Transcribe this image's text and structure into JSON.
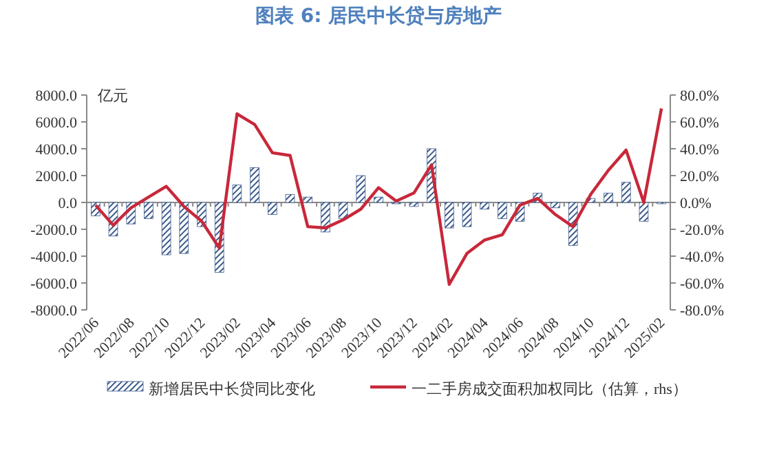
{
  "chart_data": {
    "type": "bar",
    "title": "图表 6:  居民中长贷与房地产",
    "ylabel": "亿元",
    "categories": [
      "2022/06",
      null,
      "2022/08",
      null,
      "2022/10",
      null,
      "2022/12",
      null,
      "2023/02",
      null,
      "2023/04",
      null,
      "2023/06",
      null,
      "2023/08",
      null,
      "2023/10",
      null,
      "2023/12",
      null,
      "2024/02",
      null,
      "2024/04",
      null,
      "2024/06",
      null,
      "2024/08",
      null,
      "2024/10",
      null,
      "2024/12",
      null,
      "2025/02"
    ],
    "series": [
      {
        "name": "新增居民中长贷同比变化",
        "color": "#3b5a8c",
        "values": [
          -1000,
          -2500,
          -1600,
          -1200,
          -3900,
          -3800,
          -1800,
          -5200,
          1300,
          2600,
          -900,
          600,
          400,
          -2200,
          -1200,
          2000,
          400,
          -100,
          -300,
          4000,
          -1900,
          -1800,
          -500,
          -1200,
          -1400,
          700,
          -400,
          -3200,
          300,
          700,
          1500,
          -1400,
          -100
        ]
      },
      {
        "name": "一二手房成交面积加权同比（估算，rhs）",
        "type": "line",
        "axis": "y2",
        "color": "#c8283a",
        "values": [
          -2,
          -17,
          -4,
          4,
          12,
          -3,
          -14,
          -34,
          66,
          58,
          37,
          35,
          -18,
          -19,
          -13,
          -5,
          11,
          1,
          7,
          28,
          -61,
          -38,
          -28,
          -24,
          -2,
          3,
          -9,
          -18,
          6,
          24,
          39,
          0,
          70
        ]
      }
    ],
    "ylim": [
      -8000,
      8000
    ],
    "yticks": [
      {
        "value": -8000,
        "label": "-8000.0"
      },
      {
        "value": -6000,
        "label": "-6000.0"
      },
      {
        "value": -4000,
        "label": "-4000.0"
      },
      {
        "value": -2000,
        "label": "-2000.0"
      },
      {
        "value": 0,
        "label": "0.0"
      },
      {
        "value": 2000,
        "label": "2000.0"
      },
      {
        "value": 4000,
        "label": "4000.0"
      },
      {
        "value": 6000,
        "label": "6000.0"
      },
      {
        "value": 8000,
        "label": "8000.0"
      }
    ],
    "y2lim": [
      -80,
      80
    ],
    "y2ticks": [
      {
        "value": -80,
        "label": "-80.0%"
      },
      {
        "value": -60,
        "label": "-60.0%"
      },
      {
        "value": -40,
        "label": "-40.0%"
      },
      {
        "value": -20,
        "label": "-20.0%"
      },
      {
        "value": 0,
        "label": "0.0%"
      },
      {
        "value": 20,
        "label": "20.0%"
      },
      {
        "value": 40,
        "label": "40.0%"
      },
      {
        "value": 60,
        "label": "60.0%"
      },
      {
        "value": 80,
        "label": "80.0%"
      }
    ],
    "legend": "bottom"
  }
}
